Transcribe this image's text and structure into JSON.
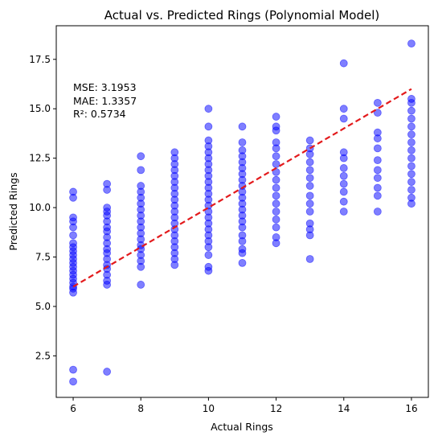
{
  "chart_data": {
    "type": "scatter",
    "title": "Actual vs. Predicted Rings (Polynomial Model)",
    "xlabel": "Actual Rings",
    "ylabel": "Predicted Rings",
    "xlim": [
      5.5,
      16.5
    ],
    "ylim": [
      0.4,
      19.2
    ],
    "xticks": [
      6,
      8,
      10,
      12,
      14,
      16
    ],
    "yticks": [
      2.5,
      5.0,
      7.5,
      10.0,
      12.5,
      15.0,
      17.5
    ],
    "grid": false,
    "marker_color": "#0000ff",
    "marker_alpha": 0.5,
    "reference_line": {
      "x": [
        6,
        16
      ],
      "y": [
        6,
        16
      ],
      "color": "#e31a1c",
      "style": "dashed"
    },
    "stats": [
      "MSE: 3.1953",
      "MAE: 1.3357",
      "R²: 0.5734"
    ],
    "points_by_x": [
      {
        "x": 6,
        "y": [
          1.2,
          1.8,
          5.7,
          5.9,
          6.0,
          6.2,
          6.4,
          6.6,
          6.8,
          7.0,
          7.2,
          7.4,
          7.6,
          7.8,
          8.0,
          8.2,
          8.6,
          9.0,
          9.3,
          9.5,
          10.5,
          10.8
        ]
      },
      {
        "x": 7,
        "y": [
          1.7,
          6.1,
          6.3,
          6.6,
          6.9,
          7.1,
          7.4,
          7.7,
          7.9,
          8.2,
          8.5,
          8.8,
          9.0,
          9.3,
          9.6,
          9.8,
          10.0,
          10.9,
          11.2
        ]
      },
      {
        "x": 8,
        "y": [
          6.1,
          7.0,
          7.3,
          7.6,
          7.9,
          8.1,
          8.4,
          8.7,
          9.0,
          9.3,
          9.6,
          9.9,
          10.2,
          10.5,
          10.8,
          11.1,
          11.9,
          12.6
        ]
      },
      {
        "x": 9,
        "y": [
          7.1,
          7.4,
          7.7,
          8.0,
          8.3,
          8.6,
          8.9,
          9.2,
          9.5,
          9.8,
          10.1,
          10.4,
          10.7,
          11.0,
          11.3,
          11.6,
          11.9,
          12.2,
          12.5,
          12.8
        ]
      },
      {
        "x": 10,
        "y": [
          6.8,
          7.0,
          7.6,
          8.0,
          8.3,
          8.6,
          8.9,
          9.2,
          9.5,
          9.8,
          10.1,
          10.4,
          10.7,
          11.0,
          11.3,
          11.6,
          11.9,
          12.2,
          12.5,
          12.8,
          13.1,
          13.4,
          14.1,
          15.0
        ]
      },
      {
        "x": 11,
        "y": [
          7.2,
          7.7,
          7.9,
          8.3,
          8.6,
          9.0,
          9.3,
          9.6,
          9.9,
          10.2,
          10.5,
          10.8,
          11.1,
          11.4,
          11.7,
          12.0,
          12.3,
          12.6,
          12.9,
          13.3,
          14.1
        ]
      },
      {
        "x": 12,
        "y": [
          8.2,
          8.5,
          9.0,
          9.4,
          9.8,
          10.2,
          10.6,
          11.0,
          11.4,
          11.8,
          12.2,
          12.6,
          13.0,
          13.3,
          13.9,
          14.1,
          14.6
        ]
      },
      {
        "x": 13,
        "y": [
          7.4,
          8.6,
          8.9,
          9.2,
          9.8,
          10.2,
          10.6,
          11.1,
          11.5,
          11.9,
          12.3,
          12.7,
          13.0,
          13.4
        ]
      },
      {
        "x": 14,
        "y": [
          9.8,
          10.3,
          10.8,
          11.2,
          11.6,
          12.0,
          12.5,
          12.8,
          14.5,
          15.0,
          17.3
        ]
      },
      {
        "x": 15,
        "y": [
          9.8,
          10.6,
          11.0,
          11.5,
          11.9,
          12.4,
          13.0,
          13.5,
          13.8,
          14.8,
          15.3
        ]
      },
      {
        "x": 16,
        "y": [
          10.2,
          10.5,
          10.9,
          11.3,
          11.7,
          12.1,
          12.5,
          12.9,
          13.3,
          13.7,
          14.1,
          14.5,
          14.9,
          15.3,
          15.5,
          18.3
        ]
      }
    ]
  }
}
